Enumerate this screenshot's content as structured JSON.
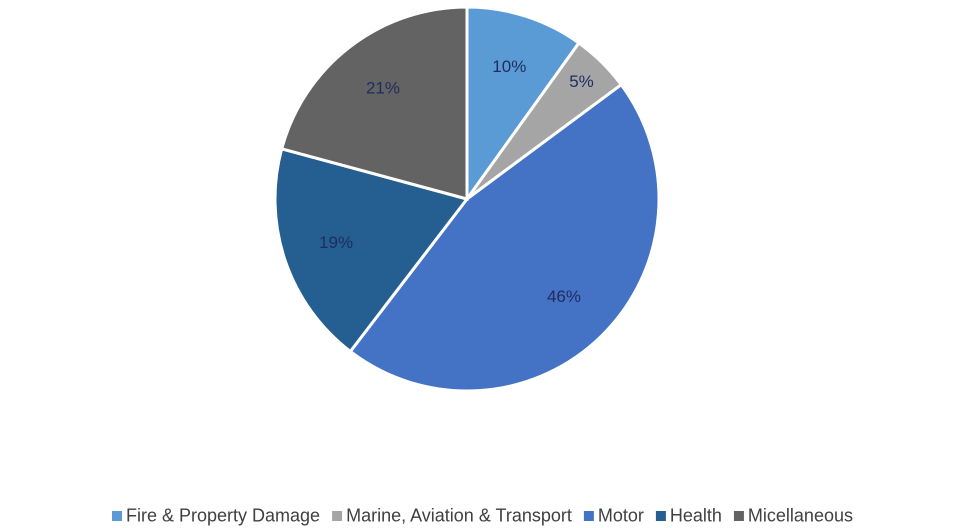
{
  "chart_data": {
    "type": "pie",
    "categories": [
      "Fire & Property Damage",
      "Marine, Aviation & Transport",
      "Motor",
      "Health",
      "Micellaneous"
    ],
    "values": [
      10,
      5,
      46,
      19,
      21
    ],
    "value_labels": [
      "10%",
      "5%",
      "46%",
      "19%",
      "21%"
    ],
    "colors": [
      "#5b9bd5",
      "#a5a5a5",
      "#4472c4",
      "#255e91",
      "#636363"
    ],
    "legend": "bottom"
  }
}
